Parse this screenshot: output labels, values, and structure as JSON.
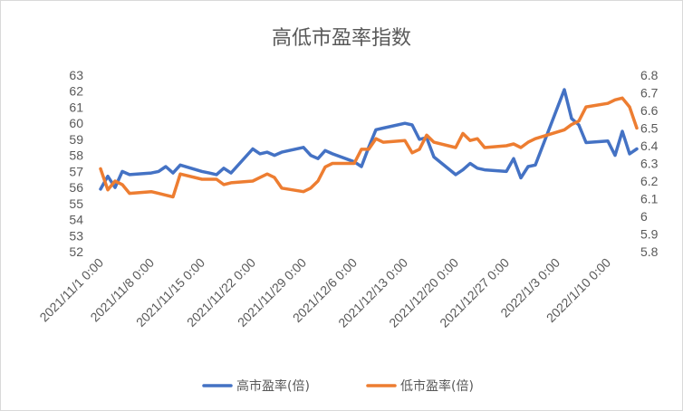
{
  "chart_data": {
    "type": "line",
    "title": "高低市盈率指数",
    "x_labels": [
      "2021/11/1 0:00",
      "2021/11/8 0:00",
      "2021/11/15 0:00",
      "2021/11/22 0:00",
      "2021/11/29 0:00",
      "2021/12/6 0:00",
      "2021/12/13 0:00",
      "2021/12/20 0:00",
      "2021/12/27 0:00",
      "2022/1/3 0:00",
      "2022/1/10 0:00"
    ],
    "x_start": "2021-11-01",
    "y_left": {
      "min": 52,
      "max": 63,
      "step": 1,
      "ticks": [
        "52",
        "53",
        "54",
        "55",
        "56",
        "57",
        "58",
        "59",
        "60",
        "61",
        "62",
        "63"
      ]
    },
    "y_right": {
      "min": 5.8,
      "max": 6.8,
      "step": 0.1,
      "ticks": [
        "5.8",
        "5.9",
        "6",
        "6.1",
        "6.2",
        "6.3",
        "6.4",
        "6.5",
        "6.6",
        "6.7",
        "6.8"
      ]
    },
    "grid": false,
    "legend_position": "bottom",
    "series": [
      {
        "name": "高市盈率(倍)",
        "axis": "left",
        "color": "#4472C4",
        "points": [
          [
            "2021-11-01",
            55.9
          ],
          [
            "2021-11-02",
            56.7
          ],
          [
            "2021-11-03",
            56.0
          ],
          [
            "2021-11-04",
            57.0
          ],
          [
            "2021-11-05",
            56.8
          ],
          [
            "2021-11-08",
            56.9
          ],
          [
            "2021-11-09",
            57.0
          ],
          [
            "2021-11-10",
            57.3
          ],
          [
            "2021-11-11",
            56.9
          ],
          [
            "2021-11-12",
            57.4
          ],
          [
            "2021-11-15",
            57.0
          ],
          [
            "2021-11-16",
            56.9
          ],
          [
            "2021-11-17",
            56.8
          ],
          [
            "2021-11-18",
            57.2
          ],
          [
            "2021-11-19",
            56.9
          ],
          [
            "2021-11-22",
            58.4
          ],
          [
            "2021-11-23",
            58.1
          ],
          [
            "2021-11-24",
            58.2
          ],
          [
            "2021-11-25",
            58.0
          ],
          [
            "2021-11-26",
            58.2
          ],
          [
            "2021-11-29",
            58.5
          ],
          [
            "2021-11-30",
            58.0
          ],
          [
            "2021-12-01",
            57.8
          ],
          [
            "2021-12-02",
            58.3
          ],
          [
            "2021-12-03",
            58.1
          ],
          [
            "2021-12-06",
            57.6
          ],
          [
            "2021-12-07",
            57.3
          ],
          [
            "2021-12-08",
            58.5
          ],
          [
            "2021-12-09",
            59.6
          ],
          [
            "2021-12-10",
            59.7
          ],
          [
            "2021-12-13",
            60.0
          ],
          [
            "2021-12-14",
            59.9
          ],
          [
            "2021-12-15",
            59.0
          ],
          [
            "2021-12-16",
            59.1
          ],
          [
            "2021-12-17",
            57.9
          ],
          [
            "2021-12-20",
            56.8
          ],
          [
            "2021-12-21",
            57.1
          ],
          [
            "2021-12-22",
            57.5
          ],
          [
            "2021-12-23",
            57.2
          ],
          [
            "2021-12-24",
            57.1
          ],
          [
            "2021-12-27",
            57.0
          ],
          [
            "2021-12-28",
            57.8
          ],
          [
            "2021-12-29",
            56.6
          ],
          [
            "2021-12-30",
            57.3
          ],
          [
            "2021-12-31",
            57.4
          ],
          [
            "2022-01-04",
            62.1
          ],
          [
            "2022-01-05",
            60.3
          ],
          [
            "2022-01-06",
            59.9
          ],
          [
            "2022-01-07",
            58.8
          ],
          [
            "2022-01-10",
            58.9
          ],
          [
            "2022-01-11",
            58.0
          ],
          [
            "2022-01-12",
            59.5
          ],
          [
            "2022-01-13",
            58.1
          ],
          [
            "2022-01-14",
            58.4
          ]
        ]
      },
      {
        "name": "低市盈率(倍)",
        "axis": "right",
        "color": "#ED7D31",
        "points": [
          [
            "2021-11-01",
            6.27
          ],
          [
            "2021-11-02",
            6.15
          ],
          [
            "2021-11-03",
            6.2
          ],
          [
            "2021-11-04",
            6.18
          ],
          [
            "2021-11-05",
            6.13
          ],
          [
            "2021-11-08",
            6.14
          ],
          [
            "2021-11-09",
            6.13
          ],
          [
            "2021-11-10",
            6.12
          ],
          [
            "2021-11-11",
            6.11
          ],
          [
            "2021-11-12",
            6.24
          ],
          [
            "2021-11-15",
            6.21
          ],
          [
            "2021-11-16",
            6.21
          ],
          [
            "2021-11-17",
            6.21
          ],
          [
            "2021-11-18",
            6.18
          ],
          [
            "2021-11-19",
            6.19
          ],
          [
            "2021-11-22",
            6.2
          ],
          [
            "2021-11-23",
            6.22
          ],
          [
            "2021-11-24",
            6.24
          ],
          [
            "2021-11-25",
            6.22
          ],
          [
            "2021-11-26",
            6.16
          ],
          [
            "2021-11-29",
            6.14
          ],
          [
            "2021-11-30",
            6.16
          ],
          [
            "2021-12-01",
            6.2
          ],
          [
            "2021-12-02",
            6.28
          ],
          [
            "2021-12-03",
            6.3
          ],
          [
            "2021-12-06",
            6.3
          ],
          [
            "2021-12-07",
            6.38
          ],
          [
            "2021-12-08",
            6.38
          ],
          [
            "2021-12-09",
            6.44
          ],
          [
            "2021-12-10",
            6.42
          ],
          [
            "2021-12-13",
            6.43
          ],
          [
            "2021-12-14",
            6.36
          ],
          [
            "2021-12-15",
            6.38
          ],
          [
            "2021-12-16",
            6.46
          ],
          [
            "2021-12-17",
            6.42
          ],
          [
            "2021-12-20",
            6.39
          ],
          [
            "2021-12-21",
            6.47
          ],
          [
            "2021-12-22",
            6.43
          ],
          [
            "2021-12-23",
            6.44
          ],
          [
            "2021-12-24",
            6.39
          ],
          [
            "2021-12-27",
            6.4
          ],
          [
            "2021-12-28",
            6.41
          ],
          [
            "2021-12-29",
            6.39
          ],
          [
            "2021-12-30",
            6.42
          ],
          [
            "2021-12-31",
            6.44
          ],
          [
            "2022-01-04",
            6.49
          ],
          [
            "2022-01-05",
            6.52
          ],
          [
            "2022-01-06",
            6.54
          ],
          [
            "2022-01-07",
            6.62
          ],
          [
            "2022-01-10",
            6.64
          ],
          [
            "2022-01-11",
            6.66
          ],
          [
            "2022-01-12",
            6.67
          ],
          [
            "2022-01-13",
            6.62
          ],
          [
            "2022-01-14",
            6.5
          ]
        ]
      }
    ]
  }
}
